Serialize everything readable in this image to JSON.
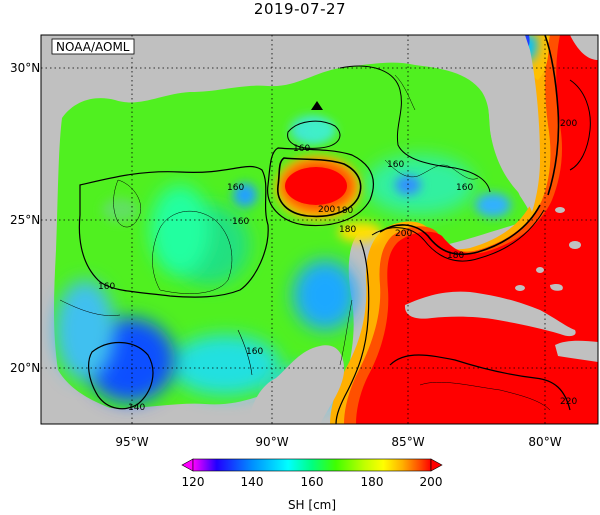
{
  "title": "2019-07-27",
  "watermark": "NOAA/AOML",
  "map": {
    "lon_range": [
      -98,
      -78
    ],
    "lat_range": [
      18,
      31
    ],
    "lon_ticks": [
      "95°W",
      "90°W",
      "85°W",
      "80°W"
    ],
    "lat_ticks": [
      "30°N",
      "25°N",
      "20°N"
    ],
    "gridlines": "dotted",
    "land_color": "#c0c0c0",
    "marker": {
      "type": "triangle",
      "lon": -88.5,
      "lat": 28.5
    }
  },
  "contours": {
    "labels": [
      "160",
      "160",
      "160",
      "160",
      "160",
      "160",
      "160",
      "180",
      "180",
      "180",
      "200",
      "200",
      "200",
      "140",
      "220"
    ]
  },
  "colorbar": {
    "label": "SH [cm]",
    "min": 120,
    "max": 200,
    "ticks": [
      "120",
      "140",
      "160",
      "180",
      "200"
    ],
    "colors": [
      "#ff00ff",
      "#2000ff",
      "#0090ff",
      "#00ffff",
      "#00ff80",
      "#40ff00",
      "#c0ff00",
      "#ffff00",
      "#ffb000",
      "#ff5000",
      "#ff0000"
    ]
  }
}
